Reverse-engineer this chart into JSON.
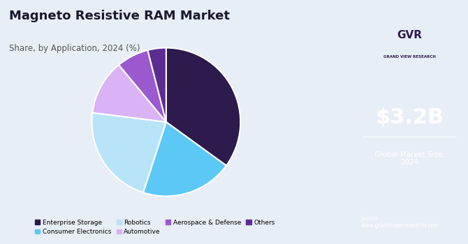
{
  "title": "Magneto Resistive RAM Market",
  "subtitle": "Share, by Application, 2024 (%)",
  "slices": [
    35.0,
    20.0,
    22.0,
    12.0,
    7.0,
    4.0
  ],
  "labels": [
    "Enterprise Storage",
    "Consumer Electronics",
    "Robotics",
    "Automotive",
    "Aerospace & Defense",
    "Others"
  ],
  "colors": [
    "#2d1b4e",
    "#5bc8f5",
    "#b8e4f9",
    "#d9b3f5",
    "#9b59d0",
    "#5c2d91"
  ],
  "start_angle": 90,
  "bg_color": "#e8eef5",
  "right_panel_color": "#3d1a5c",
  "market_size": "$3.2B",
  "market_label": "Global Market Size,\n2024",
  "source_text": "Source:\nwww.grandviewresearch.com"
}
